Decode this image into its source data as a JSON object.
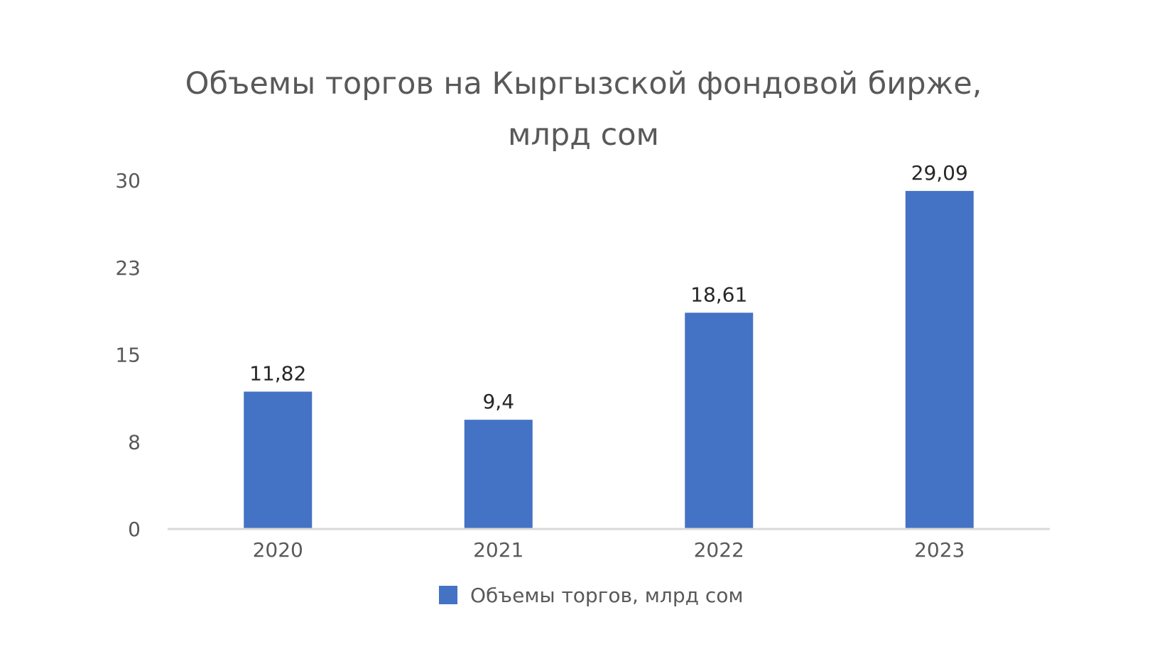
{
  "chart_data": {
    "type": "bar",
    "title_lines": [
      "Объемы торгов на Кыргызской фондовой бирже,",
      "млрд сом"
    ],
    "categories": [
      "2020",
      "2021",
      "2022",
      "2023"
    ],
    "series": [
      {
        "name": "Объемы торгов, млрд сом",
        "values": [
          11.82,
          9.4,
          18.61,
          29.09
        ],
        "data_labels": [
          "11,82",
          "9,4",
          "18,61",
          "29,09"
        ],
        "color": "#4472C4"
      }
    ],
    "y_ticks": [
      {
        "value": 0,
        "label": "0"
      },
      {
        "value": 7.5,
        "label": "8"
      },
      {
        "value": 15,
        "label": "15"
      },
      {
        "value": 22.5,
        "label": "23"
      },
      {
        "value": 30,
        "label": "30"
      }
    ],
    "ylim": [
      0,
      30
    ],
    "grid": false,
    "legend_position": "bottom",
    "colors": {
      "bar": "#4472C4",
      "axis": "#D9D9D9",
      "title": "#595959",
      "tick": "#595959",
      "data_label": "#262626"
    }
  }
}
